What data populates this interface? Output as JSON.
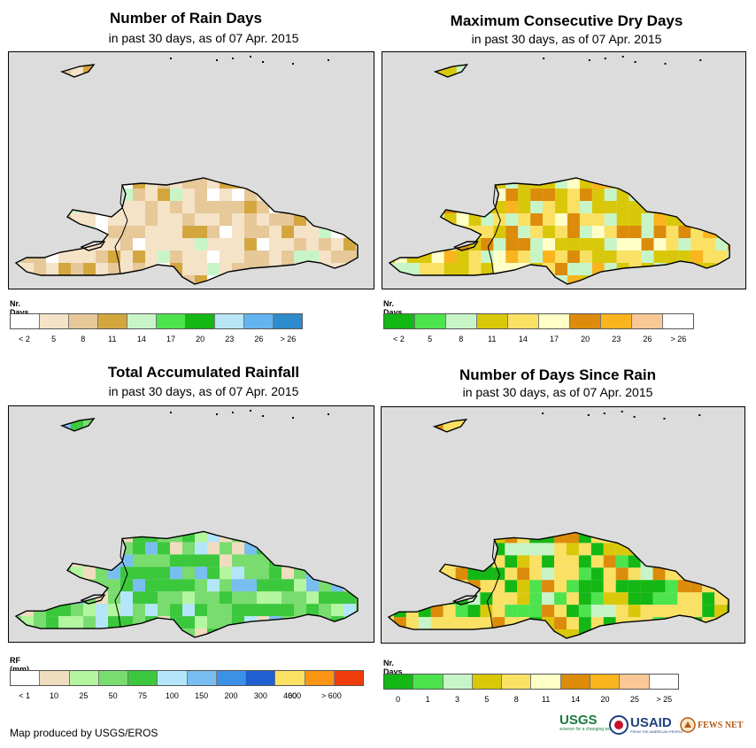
{
  "panels": [
    {
      "title": "Number of Rain Days",
      "subtitle": "in past 30 days, as of 07 Apr. 2015",
      "legend_title": "Nr. Days",
      "legend_labels": [
        "< 2",
        "5",
        "8",
        "11",
        "14",
        "17",
        "20",
        "23",
        "26",
        "> 26"
      ],
      "legend_colors": [
        "#ffffff",
        "#f5e3c8",
        "#e6c899",
        "#d4a73e",
        "#c8f5c8",
        "#4de34d",
        "#14b814",
        "#b8e6f5",
        "#64b4f0",
        "#2e8bcc"
      ]
    },
    {
      "title": "Maximum Consecutive Dry Days",
      "subtitle": "in past 30 days, as of 07 Apr. 2015",
      "legend_title": "Nr. Days",
      "legend_labels": [
        "< 2",
        "5",
        "8",
        "11",
        "14",
        "17",
        "20",
        "23",
        "26",
        "> 26"
      ],
      "legend_colors": [
        "#14b814",
        "#4de34d",
        "#c8f5c8",
        "#d9c80a",
        "#fae164",
        "#ffffc8",
        "#dc8c0a",
        "#fab41e",
        "#fac896",
        "#ffffff"
      ]
    },
    {
      "title": "Total Accumulated Rainfall",
      "subtitle": "in past 30 days, as of 07 Apr. 2015",
      "legend_title": "RF (mm)",
      "legend_labels": [
        "< 1",
        "10",
        "25",
        "50",
        "75",
        "100",
        "150",
        "200",
        "300",
        "400",
        "600",
        "> 600"
      ],
      "legend_colors": [
        "#ffffff",
        "#f0dcbe",
        "#b4f5a0",
        "#78dc6e",
        "#3cc83c",
        "#b4e6fa",
        "#78bef0",
        "#3c91e6",
        "#1e5fd2",
        "#fae164",
        "#fa9614",
        "#f03c0a"
      ]
    },
    {
      "title": "Number of Days Since Rain",
      "subtitle": "in past 30 days, as of 07 Apr. 2015",
      "legend_title": "Nr. Days",
      "legend_labels": [
        "0",
        "1",
        "3",
        "5",
        "8",
        "11",
        "14",
        "20",
        "25",
        "> 25"
      ],
      "legend_colors": [
        "#14b814",
        "#4de34d",
        "#c8f5c8",
        "#d9c80a",
        "#fae164",
        "#ffffc8",
        "#dc8c0a",
        "#fab41e",
        "#fac896",
        "#ffffff"
      ]
    }
  ],
  "credit": "Map produced by USGS/EROS",
  "logos": {
    "usgs": "USGS",
    "usgs_tag": "science for a changing world",
    "usaid": "USAID",
    "usaid_tag": "FROM THE AMERICAN PEOPLE",
    "fews": "FEWS NET"
  },
  "colors": {
    "ocean": "#dcdcdc",
    "border": "#000000"
  }
}
